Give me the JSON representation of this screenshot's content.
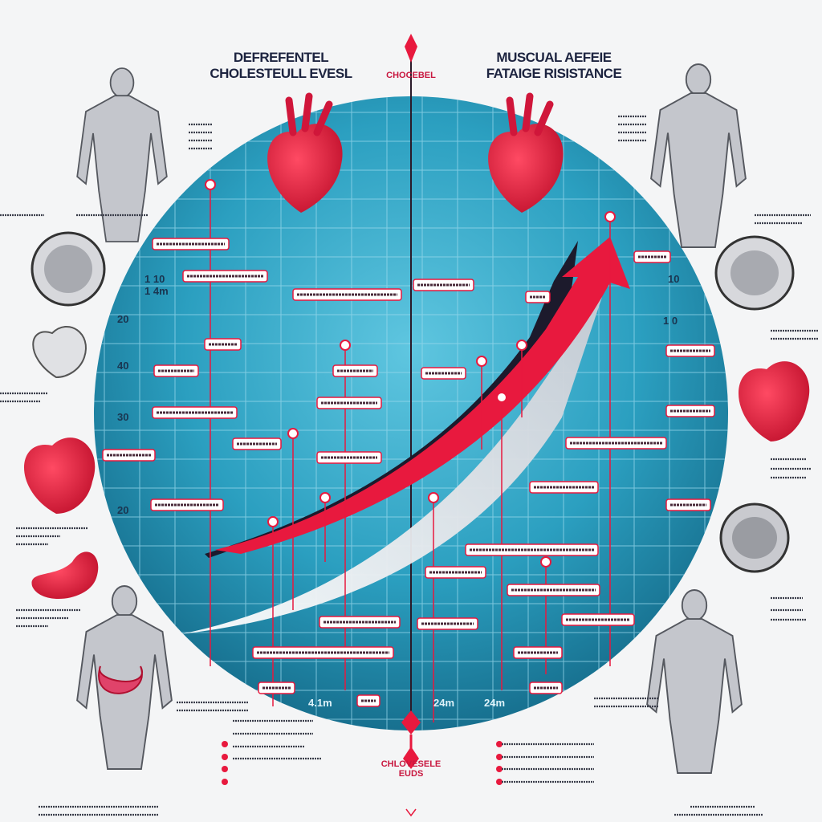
{
  "titles": {
    "left": "DEFREFENTEL\nCHOLESTEULL EVESL",
    "center": "CHOCEBEL",
    "right": "MUSCUAL AEFEIE\nFATAIGE RISISTANCE",
    "bottom": "CHLOVESELE\nEUDS"
  },
  "axis_labels": {
    "left": [
      "1 10",
      "1 4m",
      "20",
      "40",
      "30",
      "20"
    ],
    "right": [
      "10",
      "1 0"
    ],
    "bottom": [
      "4.1m",
      "24m",
      "24m"
    ]
  },
  "colors": {
    "circle": "#1f93b5",
    "accent_red": "#e8193e",
    "arrow_dark": "#1c1a2c",
    "text_dark": "#1d2440"
  },
  "icons": [
    "heart-icon",
    "human-figure-icon",
    "stomach-icon",
    "intestine-icon",
    "brain-heart-icon",
    "arrow-up-icon"
  ]
}
